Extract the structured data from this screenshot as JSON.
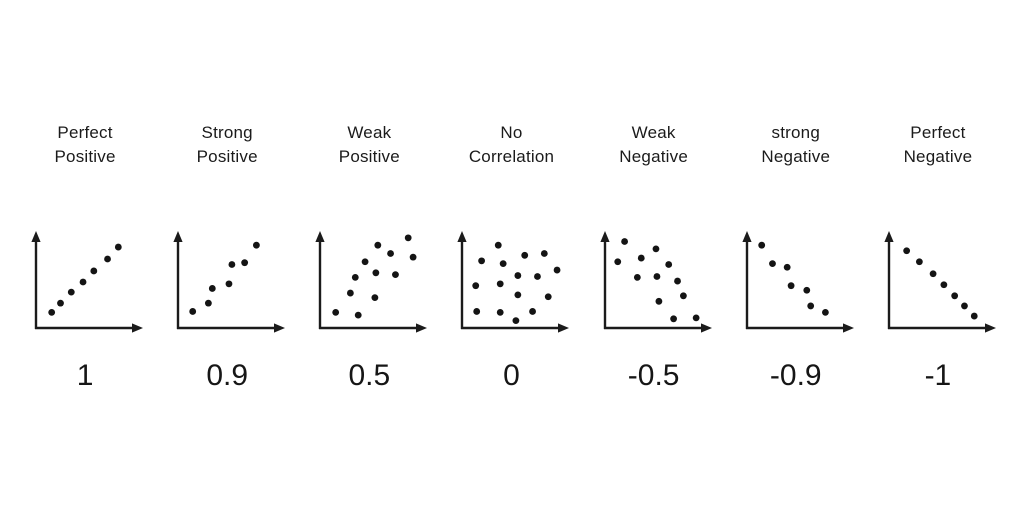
{
  "page": {
    "background": "#ffffff",
    "ink_color": "#1b1b1b",
    "dot_color": "#141414"
  },
  "chart_data": [
    {
      "type": "scatter",
      "label_lines": [
        "Perfect",
        "Positive"
      ],
      "coefficient": "1",
      "axes": "arrowed-both",
      "xlim": [
        0,
        1
      ],
      "ylim": [
        0,
        1
      ],
      "points": [
        [
          0.16,
          0.17
        ],
        [
          0.25,
          0.27
        ],
        [
          0.36,
          0.39
        ],
        [
          0.48,
          0.5
        ],
        [
          0.59,
          0.62
        ],
        [
          0.73,
          0.75
        ],
        [
          0.84,
          0.88
        ]
      ]
    },
    {
      "type": "scatter",
      "label_lines": [
        "Strong",
        "Positive"
      ],
      "coefficient": "0.9",
      "axes": "arrowed-both",
      "xlim": [
        0,
        1
      ],
      "ylim": [
        0,
        1
      ],
      "points": [
        [
          0.15,
          0.18
        ],
        [
          0.31,
          0.27
        ],
        [
          0.35,
          0.43
        ],
        [
          0.52,
          0.48
        ],
        [
          0.55,
          0.69
        ],
        [
          0.68,
          0.71
        ],
        [
          0.8,
          0.9
        ]
      ]
    },
    {
      "type": "scatter",
      "label_lines": [
        "Weak",
        "Positive"
      ],
      "coefficient": "0.5",
      "axes": "arrowed-both",
      "xlim": [
        0,
        1
      ],
      "ylim": [
        0,
        1
      ],
      "points": [
        [
          0.16,
          0.17
        ],
        [
          0.39,
          0.14
        ],
        [
          0.31,
          0.38
        ],
        [
          0.56,
          0.33
        ],
        [
          0.36,
          0.55
        ],
        [
          0.57,
          0.6
        ],
        [
          0.77,
          0.58
        ],
        [
          0.46,
          0.72
        ],
        [
          0.59,
          0.9
        ],
        [
          0.72,
          0.81
        ],
        [
          0.9,
          0.98
        ],
        [
          0.95,
          0.77
        ]
      ]
    },
    {
      "type": "scatter",
      "label_lines": [
        "No",
        "Correlation"
      ],
      "coefficient": "0",
      "axes": "arrowed-both",
      "xlim": [
        0,
        1
      ],
      "ylim": [
        0,
        1
      ],
      "points": [
        [
          0.37,
          0.9
        ],
        [
          0.64,
          0.79
        ],
        [
          0.2,
          0.73
        ],
        [
          0.42,
          0.7
        ],
        [
          0.84,
          0.81
        ],
        [
          0.57,
          0.57
        ],
        [
          0.77,
          0.56
        ],
        [
          0.97,
          0.63
        ],
        [
          0.14,
          0.46
        ],
        [
          0.39,
          0.48
        ],
        [
          0.57,
          0.36
        ],
        [
          0.88,
          0.34
        ],
        [
          0.15,
          0.18
        ],
        [
          0.39,
          0.17
        ],
        [
          0.72,
          0.18
        ],
        [
          0.55,
          0.08
        ]
      ]
    },
    {
      "type": "scatter",
      "label_lines": [
        "Weak",
        "Negative"
      ],
      "coefficient": "-0.5",
      "axes": "arrowed-both",
      "xlim": [
        0,
        1
      ],
      "ylim": [
        0,
        1
      ],
      "points": [
        [
          0.2,
          0.94
        ],
        [
          0.52,
          0.86
        ],
        [
          0.13,
          0.72
        ],
        [
          0.37,
          0.76
        ],
        [
          0.65,
          0.69
        ],
        [
          0.33,
          0.55
        ],
        [
          0.53,
          0.56
        ],
        [
          0.74,
          0.51
        ],
        [
          0.8,
          0.35
        ],
        [
          0.55,
          0.29
        ],
        [
          0.7,
          0.1
        ],
        [
          0.93,
          0.11
        ]
      ]
    },
    {
      "type": "scatter",
      "label_lines": [
        "strong",
        "Negative"
      ],
      "coefficient": "-0.9",
      "axes": "arrowed-both",
      "xlim": [
        0,
        1
      ],
      "ylim": [
        0,
        1
      ],
      "points": [
        [
          0.15,
          0.9
        ],
        [
          0.26,
          0.7
        ],
        [
          0.41,
          0.66
        ],
        [
          0.45,
          0.46
        ],
        [
          0.61,
          0.41
        ],
        [
          0.65,
          0.24
        ],
        [
          0.8,
          0.17
        ]
      ]
    },
    {
      "type": "scatter",
      "label_lines": [
        "Perfect",
        "Negative"
      ],
      "coefficient": "-1",
      "axes": "arrowed-both",
      "xlim": [
        0,
        1
      ],
      "ylim": [
        0,
        1
      ],
      "points": [
        [
          0.18,
          0.84
        ],
        [
          0.31,
          0.72
        ],
        [
          0.45,
          0.59
        ],
        [
          0.56,
          0.47
        ],
        [
          0.67,
          0.35
        ],
        [
          0.77,
          0.24
        ],
        [
          0.87,
          0.13
        ]
      ]
    }
  ]
}
